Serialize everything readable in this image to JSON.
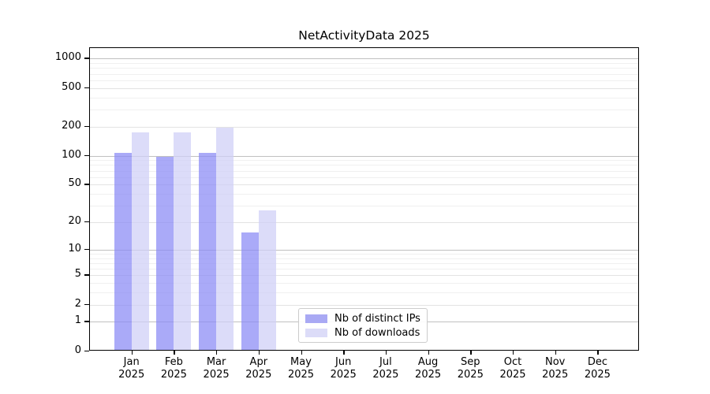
{
  "title": "NetActivityData 2025",
  "legend": {
    "items": [
      {
        "label": "Nb of distinct IPs",
        "color": "#a9a9f4"
      },
      {
        "label": "Nb of downloads",
        "color": "#dcdcf8"
      }
    ],
    "position": "lower center"
  },
  "chart_data": {
    "type": "bar",
    "title": "NetActivityData 2025",
    "xlabel": "",
    "ylabel": "",
    "x_tick_line2": "2025",
    "categories": [
      "Jan",
      "Feb",
      "Mar",
      "Apr",
      "May",
      "Jun",
      "Jul",
      "Aug",
      "Sep",
      "Oct",
      "Nov",
      "Dec"
    ],
    "series": [
      {
        "name": "Nb of distinct IPs",
        "color": "#a9a9f4",
        "values": [
          105,
          95,
          105,
          15,
          0,
          0,
          0,
          0,
          0,
          0,
          0,
          0
        ]
      },
      {
        "name": "Nb of downloads",
        "color": "#dcdcf8",
        "values": [
          171,
          171,
          188,
          26,
          0,
          0,
          0,
          0,
          0,
          0,
          0,
          0
        ]
      }
    ],
    "y_scale": "log10(1+x)",
    "y_ticks": [
      0,
      1,
      2,
      5,
      10,
      20,
      50,
      100,
      200,
      500,
      1000
    ],
    "ylim": [
      0,
      1200
    ],
    "grid": "horizontal, minor+major log decades",
    "legend_position": "lower center"
  }
}
